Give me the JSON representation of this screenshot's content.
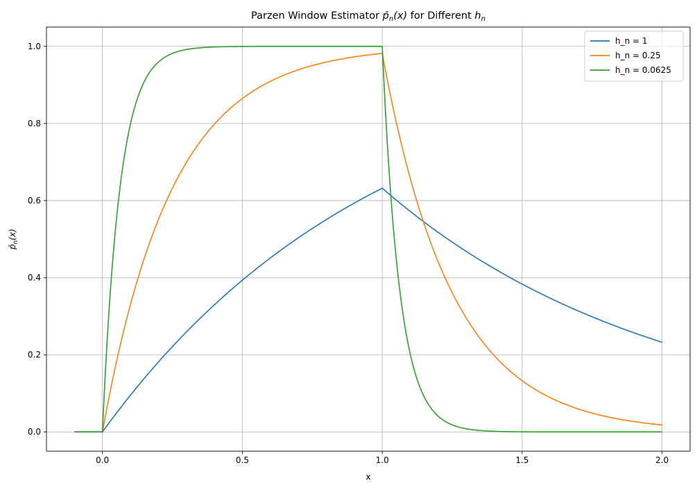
{
  "chart_data": {
    "type": "line",
    "title": "Parzen Window Estimator p̄ₙ(x) for Different hₙ",
    "title_parts": {
      "prefix": "Parzen Window Estimator ",
      "pbar": "p̄",
      "pbar_sub": "n",
      "arg": "(x)",
      "middle": " for Different ",
      "h": "h",
      "h_sub": "n"
    },
    "xlabel": "x",
    "ylabel": "p̄ₙ(x)",
    "ylabel_parts": {
      "pbar": "p̄",
      "sub": "n",
      "arg": "(x)"
    },
    "xlim": [
      -0.2,
      2.1
    ],
    "ylim": [
      -0.05,
      1.05
    ],
    "xticks": [
      0.0,
      0.5,
      1.0,
      1.5,
      2.0
    ],
    "xtick_labels": [
      "0.0",
      "0.5",
      "1.0",
      "1.5",
      "2.0"
    ],
    "yticks": [
      0.0,
      0.2,
      0.4,
      0.6,
      0.8,
      1.0
    ],
    "ytick_labels": [
      "0.0",
      "0.2",
      "0.4",
      "0.6",
      "0.8",
      "1.0"
    ],
    "grid": true,
    "legend_position": "top-right",
    "x_domain": [
      -0.1,
      2.0
    ],
    "series": [
      {
        "name": "h_n = 1",
        "h": 1,
        "color": "#1f77b4"
      },
      {
        "name": "h_n = 0.25",
        "h": 0.25,
        "color": "#ff7f0e"
      },
      {
        "name": "h_n = 0.0625",
        "h": 0.0625,
        "color": "#2ca02c"
      }
    ],
    "key_points": [
      {
        "series": "h_n = 1",
        "x": 1.0,
        "y": 0.632
      },
      {
        "series": "h_n = 1",
        "x": 2.0,
        "y": 0.233
      },
      {
        "series": "h_n = 0.25",
        "x": 1.0,
        "y": 0.982
      },
      {
        "series": "h_n = 0.25",
        "x": 2.0,
        "y": 0.018
      },
      {
        "series": "h_n = 0.0625",
        "x": 1.0,
        "y": 1.0
      },
      {
        "series": "h_n = 0.0625",
        "x": 2.0,
        "y": 0.0
      }
    ]
  }
}
